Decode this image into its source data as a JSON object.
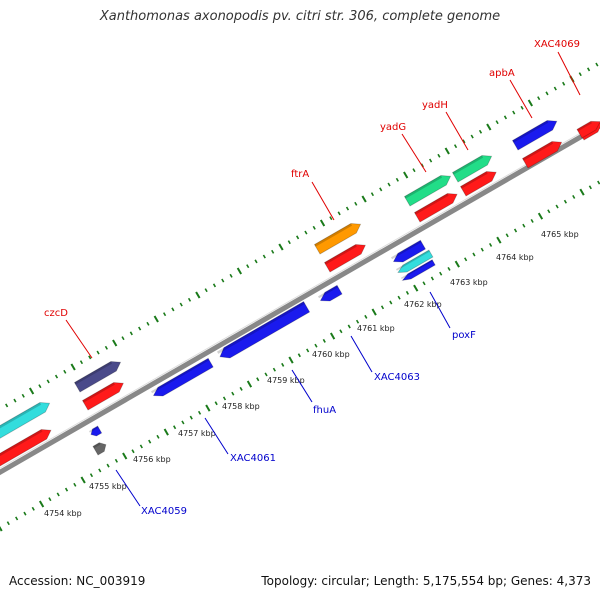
{
  "title": "Xanthomonas axonopodis pv. citri str. 306, complete genome",
  "footer": {
    "accession": "Accession: NC_003919",
    "topology": "Topology: circular; Length: 5,175,554 bp; Genes: 4,373"
  },
  "scale_labels": [
    "4754 kbp",
    "4755 kbp",
    "4756 kbp",
    "4757 kbp",
    "4758 kbp",
    "4759 kbp",
    "4760 kbp",
    "4761 kbp",
    "4762 kbp",
    "4763 kbp",
    "4764 kbp",
    "4765 kbp"
  ],
  "genes_top": [
    {
      "label": "czcD",
      "color": "#e00000"
    },
    {
      "label": "ftrA",
      "color": "#e00000"
    },
    {
      "label": "yadG",
      "color": "#e00000"
    },
    {
      "label": "yadH",
      "color": "#e00000"
    },
    {
      "label": "apbA",
      "color": "#e00000"
    },
    {
      "label": "XAC4069",
      "color": "#e00000"
    }
  ],
  "genes_bottom": [
    {
      "label": "XAC4059",
      "color": "#0000cc"
    },
    {
      "label": "XAC4061",
      "color": "#0000cc"
    },
    {
      "label": "fhuA",
      "color": "#0000cc"
    },
    {
      "label": "XAC4063",
      "color": "#0000cc"
    },
    {
      "label": "poxF",
      "color": "#0000cc"
    }
  ],
  "colors": {
    "red": "#ff1a1a",
    "blue": "#1a1aee",
    "cyan": "#33dddd",
    "green": "#22dd88",
    "orange": "#ff9900",
    "slate": "#4a4a8a",
    "gray": "#666666",
    "tick": "#1a7a1a",
    "backbone": "#999999"
  }
}
